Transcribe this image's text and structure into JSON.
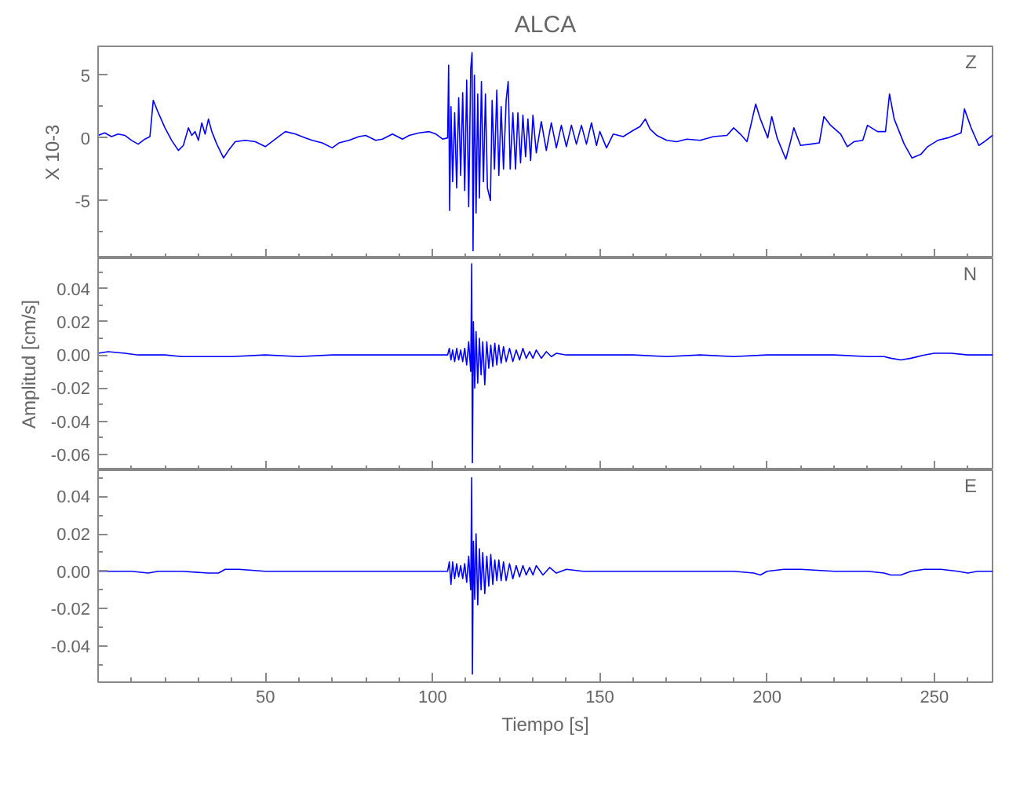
{
  "chart_data": [
    {
      "type": "line",
      "title": "ALCA",
      "ylabel": "X 10-3",
      "annotations": [
        "Z"
      ],
      "tick_labels": "y",
      "xlim": [
        0,
        267.4
      ],
      "ylim": [
        -9.6,
        7.3
      ],
      "xticks": [
        {
          "value": 10,
          "label": null
        },
        {
          "value": 20,
          "label": null
        },
        {
          "value": 30,
          "label": null
        },
        {
          "value": 40,
          "label": null
        },
        50,
        {
          "value": 60,
          "label": null
        },
        {
          "value": 70,
          "label": null
        },
        {
          "value": 80,
          "label": null
        },
        {
          "value": 90,
          "label": null
        },
        100,
        {
          "value": 110,
          "label": null
        },
        {
          "value": 120,
          "label": null
        },
        {
          "value": 130,
          "label": null
        },
        {
          "value": 140,
          "label": null
        },
        150,
        {
          "value": 160,
          "label": null
        },
        {
          "value": 170,
          "label": null
        },
        {
          "value": 180,
          "label": null
        },
        {
          "value": 190,
          "label": null
        },
        200,
        {
          "value": 210,
          "label": null
        },
        {
          "value": 220,
          "label": null
        },
        {
          "value": 230,
          "label": null
        },
        {
          "value": 240,
          "label": null
        },
        250,
        {
          "value": 260,
          "label": null
        }
      ],
      "yticks": [
        {
          "value": -7.5,
          "label": null
        },
        -5,
        {
          "value": -2.5,
          "label": null
        },
        0,
        {
          "value": 2.5,
          "label": null
        },
        5
      ],
      "x": [
        0,
        2,
        4,
        6,
        8,
        10,
        12,
        14,
        15.5,
        16.5,
        18,
        20,
        22,
        24,
        25.5,
        27,
        28,
        29,
        30,
        31,
        32,
        33,
        34,
        35.5,
        37.5,
        39,
        41,
        44,
        47,
        50,
        53,
        56,
        59,
        62,
        64,
        67,
        70,
        72,
        75,
        78,
        80,
        83,
        85,
        88,
        91,
        93,
        96,
        99,
        101,
        103,
        104.5,
        104.8,
        105.1,
        105.5,
        106,
        106.6,
        107.2,
        107.8,
        108.4,
        109,
        109.6,
        110.2,
        110.8,
        111.4,
        111.8,
        112.1,
        112.5,
        113,
        113.5,
        114,
        114.6,
        115.2,
        115.8,
        116.4,
        117.3,
        117.8,
        118.5,
        119.2,
        119.8,
        120.5,
        121.2,
        122,
        122.6,
        123.2,
        124,
        124.8,
        125.5,
        126.3,
        127,
        127.8,
        128.5,
        129.3,
        130,
        131,
        132.5,
        134,
        135.5,
        137,
        138.5,
        140,
        141.5,
        143,
        144.5,
        146,
        147.5,
        149,
        150,
        152,
        154,
        157,
        160,
        162,
        163.6,
        165,
        167,
        170,
        173,
        176,
        180,
        184,
        188,
        190,
        192,
        194,
        196.6,
        198,
        200.2,
        201.4,
        203,
        205.6,
        207,
        208,
        210,
        213,
        215.6,
        217,
        219,
        222,
        224,
        226,
        228.6,
        230,
        233,
        235.4,
        236.6,
        238,
        241,
        243.3,
        246,
        248,
        251,
        254,
        258,
        259,
        261,
        263.3,
        265,
        267.4
      ],
      "series": [
        {
          "color": "#0000ff",
          "values": [
            0.2,
            0.4,
            0.1,
            0.3,
            0.2,
            -0.2,
            -0.5,
            -0.1,
            0.1,
            3.0,
            2.0,
            0.8,
            -0.2,
            -1.0,
            -0.6,
            0.8,
            0.2,
            0.5,
            -0.2,
            1.2,
            0.3,
            1.5,
            0.5,
            -0.5,
            -1.6,
            -1.0,
            -0.3,
            -0.2,
            -0.3,
            -0.7,
            -0.1,
            0.5,
            0.3,
            0.0,
            -0.2,
            -0.4,
            -0.8,
            -0.4,
            -0.2,
            0.1,
            0.2,
            -0.2,
            -0.1,
            0.3,
            -0.1,
            0.2,
            0.4,
            0.5,
            0.3,
            -0.1,
            0.0,
            5.8,
            -5.8,
            2.5,
            -3.5,
            2.0,
            -4.0,
            3.2,
            -3.0,
            3.6,
            -4.2,
            4.6,
            -5.5,
            5.5,
            6.8,
            -9.0,
            5.0,
            -6.0,
            3.5,
            -4.8,
            4.5,
            -3.5,
            3.5,
            -4.0,
            -5.0,
            3.0,
            -2.5,
            3.8,
            -3.0,
            2.5,
            -2.5,
            3.0,
            4.5,
            -2.5,
            2.0,
            -2.5,
            2.0,
            -2.0,
            1.8,
            -1.5,
            1.5,
            -1.8,
            1.8,
            -1.2,
            1.3,
            -1.0,
            1.2,
            -0.8,
            1.0,
            -0.7,
            1.0,
            -0.5,
            1.0,
            -0.5,
            1.2,
            -0.6,
            0.5,
            -0.8,
            0.3,
            0.1,
            0.6,
            0.9,
            1.5,
            0.7,
            0.2,
            -0.2,
            -0.3,
            -0.1,
            -0.2,
            0.1,
            0.2,
            0.8,
            0.3,
            -0.3,
            2.7,
            1.5,
            0.0,
            1.7,
            0.0,
            -1.7,
            -0.3,
            0.8,
            -0.6,
            -0.5,
            -0.4,
            1.7,
            1.0,
            0.3,
            -0.7,
            -0.3,
            -0.2,
            1.0,
            0.5,
            0.5,
            3.5,
            1.5,
            -0.5,
            -1.6,
            -1.3,
            -0.7,
            -0.2,
            0.0,
            0.4,
            2.3,
            0.8,
            -0.6,
            -0.3,
            0.2
          ]
        }
      ]
    },
    {
      "type": "line",
      "ylabel": "Amplitud [cm/s]",
      "annotations": [
        "N"
      ],
      "tick_labels": "y",
      "xlim": [
        0,
        267.4
      ],
      "ylim": [
        -0.0695,
        0.0583
      ],
      "xticks": [
        {
          "value": 10,
          "label": null
        },
        {
          "value": 20,
          "label": null
        },
        {
          "value": 30,
          "label": null
        },
        {
          "value": 40,
          "label": null
        },
        50,
        {
          "value": 60,
          "label": null
        },
        {
          "value": 70,
          "label": null
        },
        {
          "value": 80,
          "label": null
        },
        {
          "value": 90,
          "label": null
        },
        100,
        {
          "value": 110,
          "label": null
        },
        {
          "value": 120,
          "label": null
        },
        {
          "value": 130,
          "label": null
        },
        {
          "value": 140,
          "label": null
        },
        150,
        {
          "value": 160,
          "label": null
        },
        {
          "value": 170,
          "label": null
        },
        {
          "value": 180,
          "label": null
        },
        {
          "value": 190,
          "label": null
        },
        200,
        {
          "value": 210,
          "label": null
        },
        {
          "value": 220,
          "label": null
        },
        {
          "value": 230,
          "label": null
        },
        {
          "value": 240,
          "label": null
        },
        250,
        {
          "value": 260,
          "label": null
        }
      ],
      "yticks": [
        -0.06,
        {
          "value": -0.05,
          "label": null
        },
        -0.04,
        {
          "value": -0.03,
          "label": null
        },
        -0.02,
        {
          "value": -0.01,
          "label": null
        },
        {
          "value": 0,
          "label": "0.00"
        },
        {
          "value": 0.01,
          "label": null
        },
        0.02,
        {
          "value": 0.03,
          "label": null
        },
        0.04,
        {
          "value": 0.05,
          "label": null
        }
      ],
      "x": [
        0,
        3,
        8,
        12,
        20,
        25,
        30,
        40,
        50,
        60,
        70,
        80,
        90,
        100,
        104.5,
        105,
        105.5,
        106,
        106.6,
        107.2,
        107.8,
        108.4,
        109,
        109.6,
        110.2,
        110.8,
        111.4,
        111.7,
        111.9,
        112.2,
        112.6,
        113,
        113.5,
        114,
        114.5,
        115,
        115.6,
        116.2,
        116.8,
        117.4,
        118,
        118.6,
        119.2,
        119.8,
        120.5,
        121.2,
        122,
        123,
        124,
        125,
        126,
        127,
        128,
        129,
        130,
        131,
        132.5,
        134,
        135.5,
        137,
        140,
        145,
        150,
        160,
        170,
        180,
        190,
        200,
        210,
        220,
        230,
        235,
        237,
        240,
        243,
        247,
        250,
        255,
        260,
        267.4
      ],
      "series": [
        {
          "color": "#0000ff",
          "values": [
            0.001,
            0.002,
            0.001,
            0.0,
            0.0,
            -0.001,
            -0.001,
            -0.001,
            0.0,
            -0.001,
            0.0,
            0.0,
            0.0,
            0.0,
            0.0,
            0.004,
            -0.003,
            0.003,
            -0.004,
            0.004,
            -0.003,
            0.003,
            -0.004,
            0.004,
            -0.006,
            0.008,
            -0.01,
            0.055,
            -0.065,
            0.02,
            -0.02,
            0.014,
            -0.017,
            0.01,
            -0.012,
            0.008,
            -0.018,
            0.008,
            -0.008,
            0.006,
            -0.007,
            0.007,
            -0.006,
            0.006,
            -0.005,
            0.005,
            -0.004,
            0.004,
            -0.004,
            0.003,
            -0.003,
            0.004,
            -0.002,
            0.002,
            -0.002,
            0.003,
            -0.002,
            0.002,
            -0.001,
            0.001,
            0.0,
            0.0,
            0.0,
            0.0,
            -0.001,
            0.0,
            -0.001,
            0.0,
            0.0,
            0.0,
            -0.001,
            -0.001,
            -0.002,
            -0.003,
            -0.002,
            0.0,
            0.001,
            0.001,
            0.0,
            0.0
          ]
        }
      ]
    },
    {
      "type": "line",
      "xlabel": "Tiempo [s]",
      "annotations": [
        "E"
      ],
      "xlim": [
        0,
        267.4
      ],
      "ylim": [
        -0.0593,
        0.054
      ],
      "xticks": [
        {
          "value": 10,
          "label": null
        },
        {
          "value": 20,
          "label": null
        },
        {
          "value": 30,
          "label": null
        },
        {
          "value": 40,
          "label": null
        },
        50,
        {
          "value": 60,
          "label": null
        },
        {
          "value": 70,
          "label": null
        },
        {
          "value": 80,
          "label": null
        },
        {
          "value": 90,
          "label": null
        },
        100,
        {
          "value": 110,
          "label": null
        },
        {
          "value": 120,
          "label": null
        },
        {
          "value": 130,
          "label": null
        },
        {
          "value": 140,
          "label": null
        },
        150,
        {
          "value": 160,
          "label": null
        },
        {
          "value": 170,
          "label": null
        },
        {
          "value": 180,
          "label": null
        },
        {
          "value": 190,
          "label": null
        },
        200,
        {
          "value": 210,
          "label": null
        },
        {
          "value": 220,
          "label": null
        },
        {
          "value": 230,
          "label": null
        },
        {
          "value": 240,
          "label": null
        },
        250,
        {
          "value": 260,
          "label": null
        }
      ],
      "yticks": [
        {
          "value": -0.05,
          "label": null
        },
        -0.04,
        {
          "value": -0.03,
          "label": null
        },
        -0.02,
        {
          "value": -0.01,
          "label": null
        },
        {
          "value": 0,
          "label": "0.00"
        },
        {
          "value": 0.01,
          "label": null
        },
        0.02,
        {
          "value": 0.03,
          "label": null
        },
        0.04,
        {
          "value": 0.05,
          "label": null
        }
      ],
      "x": [
        0,
        5,
        10,
        15,
        18,
        25,
        33,
        36,
        38,
        42,
        50,
        60,
        70,
        80,
        90,
        100,
        104.5,
        105,
        105.5,
        106,
        106.6,
        107.2,
        107.8,
        108.4,
        109,
        109.6,
        110.2,
        110.8,
        111.4,
        111.7,
        111.9,
        112.2,
        112.6,
        113,
        113.5,
        114,
        114.5,
        115,
        115.6,
        116.2,
        116.8,
        117.4,
        118,
        118.6,
        119.2,
        119.8,
        120.5,
        121.2,
        122,
        123,
        124,
        125,
        126,
        127,
        128,
        129,
        130,
        131,
        133,
        135,
        137,
        140,
        145,
        150,
        160,
        170,
        180,
        190,
        196,
        198,
        200,
        205,
        210,
        220,
        230,
        235,
        237,
        240,
        243,
        247,
        252,
        257,
        260,
        263,
        267.4
      ],
      "series": [
        {
          "color": "#0000ff",
          "values": [
            0.0,
            0.0,
            0.0,
            -0.001,
            0.0,
            0.0,
            -0.001,
            -0.001,
            0.001,
            0.001,
            0.0,
            0.0,
            0.0,
            0.0,
            0.0,
            0.0,
            0.0,
            0.005,
            -0.007,
            0.005,
            -0.004,
            0.004,
            -0.003,
            0.003,
            -0.004,
            0.004,
            -0.006,
            0.008,
            -0.01,
            0.05,
            -0.055,
            0.016,
            -0.015,
            0.02,
            -0.018,
            0.012,
            -0.01,
            0.01,
            -0.012,
            0.008,
            -0.008,
            0.009,
            -0.007,
            0.006,
            -0.005,
            0.006,
            -0.005,
            0.005,
            -0.005,
            0.004,
            -0.004,
            0.003,
            -0.003,
            0.003,
            -0.002,
            0.002,
            -0.002,
            0.003,
            -0.002,
            0.002,
            -0.001,
            0.001,
            0.0,
            0.0,
            0.0,
            0.0,
            0.0,
            0.0,
            -0.001,
            -0.002,
            0.0,
            0.001,
            0.001,
            0.0,
            0.0,
            -0.001,
            -0.002,
            -0.002,
            0.0,
            0.001,
            0.001,
            0.0,
            -0.001,
            0.0,
            0.0
          ]
        }
      ]
    }
  ]
}
